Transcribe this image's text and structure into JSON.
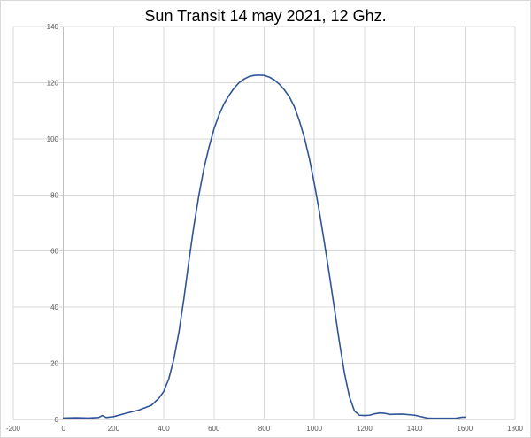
{
  "chart_data": {
    "type": "line",
    "title": "Sun Transit 14 may 2021, 12 Ghz.",
    "xlabel": "",
    "ylabel": "",
    "xlim": [
      -200,
      1800
    ],
    "ylim": [
      0,
      140
    ],
    "x_ticks": [
      -200,
      0,
      200,
      400,
      600,
      800,
      1000,
      1200,
      1400,
      1600,
      1800
    ],
    "y_ticks": [
      0,
      20,
      40,
      60,
      80,
      100,
      120,
      140
    ],
    "grid": true,
    "legend": "none",
    "series": [
      {
        "color": "#2e5597",
        "x": [
          0,
          50,
          100,
          140,
          155,
          170,
          200,
          250,
          300,
          350,
          380,
          400,
          420,
          440,
          460,
          480,
          500,
          520,
          540,
          560,
          580,
          600,
          620,
          640,
          660,
          680,
          700,
          720,
          740,
          760,
          780,
          800,
          820,
          840,
          860,
          880,
          900,
          920,
          940,
          960,
          980,
          1000,
          1020,
          1040,
          1060,
          1080,
          1100,
          1120,
          1140,
          1160,
          1180,
          1200,
          1220,
          1240,
          1260,
          1280,
          1300,
          1350,
          1400,
          1430,
          1450,
          1470,
          1500,
          1530,
          1560,
          1590,
          1600
        ],
        "y": [
          0.5,
          0.6,
          0.5,
          0.7,
          1.4,
          0.7,
          1.0,
          2.2,
          3.3,
          5.0,
          7.5,
          10.0,
          14.5,
          21.5,
          31.0,
          43.0,
          56.5,
          69.0,
          80.0,
          89.5,
          97.0,
          103.5,
          108.5,
          112.5,
          115.5,
          118.0,
          120.0,
          121.3,
          122.2,
          122.6,
          122.7,
          122.6,
          122.0,
          121.0,
          119.5,
          117.5,
          115.0,
          111.5,
          106.5,
          100.5,
          93.0,
          84.0,
          74.0,
          63.0,
          51.5,
          39.5,
          27.5,
          16.5,
          8.0,
          3.0,
          1.5,
          1.4,
          1.5,
          2.0,
          2.3,
          2.2,
          1.8,
          1.9,
          1.5,
          0.9,
          0.5,
          0.4,
          0.4,
          0.4,
          0.4,
          0.8,
          0.8
        ]
      }
    ]
  }
}
